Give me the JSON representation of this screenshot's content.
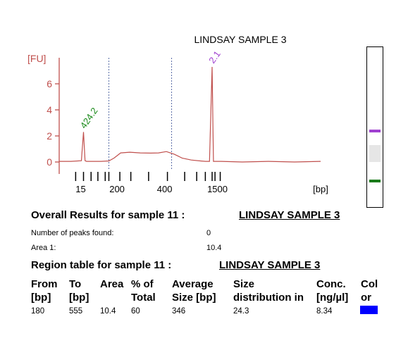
{
  "chart_data": {
    "type": "line",
    "title": "LINDSAY SAMPLE 3",
    "ylabel": "[FU]",
    "xlabel": "[bp]",
    "yticks": [
      "0",
      "2",
      "4",
      "6"
    ],
    "ylim": [
      -0.5,
      8.2
    ],
    "xticks": [
      "15",
      "200",
      "400",
      "1500"
    ],
    "series_color": "#c0504d",
    "series": [
      {
        "x": [
          0.0,
          0.045,
          0.085,
          0.093,
          0.099,
          0.105,
          0.118,
          0.16,
          0.19,
          0.21,
          0.235,
          0.27,
          0.31,
          0.35,
          0.38,
          0.41,
          0.44,
          0.47,
          0.505,
          0.54,
          0.56,
          0.575,
          0.585,
          0.59,
          0.6,
          0.62,
          0.7,
          0.8,
          0.9,
          1.0
        ],
        "y": [
          0.05,
          0.05,
          0.1,
          2.3,
          0.1,
          0.05,
          0.05,
          0.05,
          0.08,
          0.3,
          0.7,
          0.75,
          0.7,
          0.68,
          0.7,
          0.8,
          0.6,
          0.3,
          0.15,
          0.08,
          0.05,
          0.05,
          7.3,
          0.05,
          0.05,
          0.05,
          0.0,
          0.05,
          0.0,
          0.05
        ]
      }
    ],
    "peaks": [
      {
        "label": "424.2",
        "x": 0.093,
        "y": 2.3,
        "color": "#1a8a1a"
      },
      {
        "label": "2.1",
        "x": 0.585,
        "y": 7.3,
        "color": "#a040d0"
      }
    ],
    "dotted_markers_x": [
      0.19,
      0.43
    ],
    "x_ticks_minor": [
      0.063,
      0.093,
      0.122,
      0.148,
      0.176,
      0.19,
      0.232,
      0.274,
      0.342,
      0.414,
      0.48,
      0.526,
      0.559,
      0.585,
      0.596,
      0.616
    ],
    "x_tick_labels_pos": [
      0.093,
      0.232,
      0.414,
      0.616
    ]
  },
  "gel": {
    "bands": [
      {
        "pos": 0.52,
        "color": "#a040d0",
        "height": 4
      },
      {
        "pos": 0.66,
        "color": "#e6e6e6",
        "height": 24
      },
      {
        "pos": 0.83,
        "color": "#1a7a1a",
        "height": 4
      }
    ]
  },
  "results": {
    "heading": "Overall Results for sample 11  :",
    "sample_name": "LINDSAY SAMPLE 3",
    "peaks_label": "Number of peaks found:",
    "peaks_value": "0",
    "area_label": "Area 1:",
    "area_value": "10.4"
  },
  "region": {
    "heading": "Region table for sample 11  :",
    "sample_name": "LINDSAY SAMPLE 3",
    "columns": [
      {
        "line1": "From",
        "line2": "[bp]"
      },
      {
        "line1": "To",
        "line2": "[bp]"
      },
      {
        "line1": "Area",
        "line2": ""
      },
      {
        "line1": "% of",
        "line2": "Total"
      },
      {
        "line1": "Average",
        "line2": "Size [bp]"
      },
      {
        "line1": "Size",
        "line2": "distribution in"
      },
      {
        "line1": "Conc.",
        "line2": "[ng/µl]"
      },
      {
        "line1": "Col",
        "line2": "or"
      }
    ],
    "row": [
      "180",
      "555",
      "10.4",
      "60",
      "346",
      "24.3",
      "8.34"
    ],
    "row_color": "#0000ff"
  }
}
